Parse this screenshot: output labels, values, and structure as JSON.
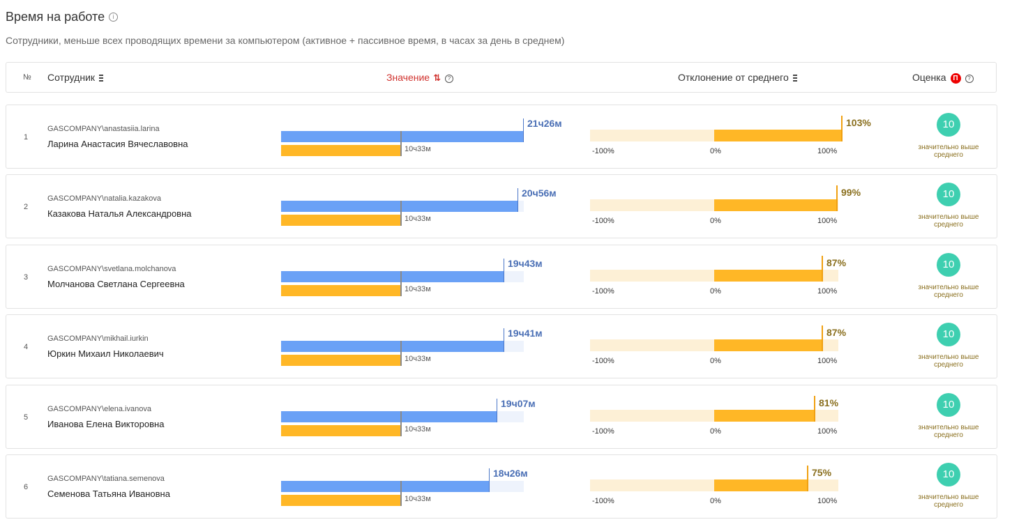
{
  "page": {
    "title": "Время на работе",
    "subtitle": "Сотрудники, меньше всех проводящих времени за компьютером (активное + пассивное время, в часах за день в среднем)"
  },
  "columns": {
    "num": "№",
    "employee": "Сотрудник",
    "value": "Значение",
    "deviation": "Отклонение от среднего",
    "score": "Оценка",
    "score_badge": "П"
  },
  "colors": {
    "value_bar": "#6aa1f6",
    "average_bar": "#ffb726",
    "score": "#3ecfb0",
    "sort_active": "#d0312d"
  },
  "average_label": "10ч33м",
  "axis_labels": [
    "-100%",
    "0%",
    "100%"
  ],
  "value_scale_max_minutes": 1286,
  "rows": [
    {
      "num": "1",
      "login": "GASCOMPANY\\anastasiia.larina",
      "name": "Ларина Анастасия Вячеславовна",
      "value_label": "21ч26м",
      "value_minutes": 1286,
      "deviation_label": "103%",
      "deviation_pct": 103,
      "score": "10",
      "score_label": "значительно выше среднего"
    },
    {
      "num": "2",
      "login": "GASCOMPANY\\natalia.kazakova",
      "name": "Казакова Наталья Александровна",
      "value_label": "20ч56м",
      "value_minutes": 1256,
      "deviation_label": "99%",
      "deviation_pct": 99,
      "score": "10",
      "score_label": "значительно выше среднего"
    },
    {
      "num": "3",
      "login": "GASCOMPANY\\svetlana.molchanova",
      "name": "Молчанова Светлана Сергеевна",
      "value_label": "19ч43м",
      "value_minutes": 1183,
      "deviation_label": "87%",
      "deviation_pct": 87,
      "score": "10",
      "score_label": "значительно выше среднего"
    },
    {
      "num": "4",
      "login": "GASCOMPANY\\mikhail.iurkin",
      "name": "Юркин Михаил Николаевич",
      "value_label": "19ч41м",
      "value_minutes": 1181,
      "deviation_label": "87%",
      "deviation_pct": 87,
      "score": "10",
      "score_label": "значительно выше среднего"
    },
    {
      "num": "5",
      "login": "GASCOMPANY\\elena.ivanova",
      "name": "Иванова Елена Викторовна",
      "value_label": "19ч07м",
      "value_minutes": 1147,
      "deviation_label": "81%",
      "deviation_pct": 81,
      "score": "10",
      "score_label": "значительно выше среднего"
    },
    {
      "num": "6",
      "login": "GASCOMPANY\\tatiana.semenova",
      "name": "Семенова Татьяна Ивановна",
      "value_label": "18ч26м",
      "value_minutes": 1106,
      "deviation_label": "75%",
      "deviation_pct": 75,
      "score": "10",
      "score_label": "значительно выше среднего"
    }
  ]
}
